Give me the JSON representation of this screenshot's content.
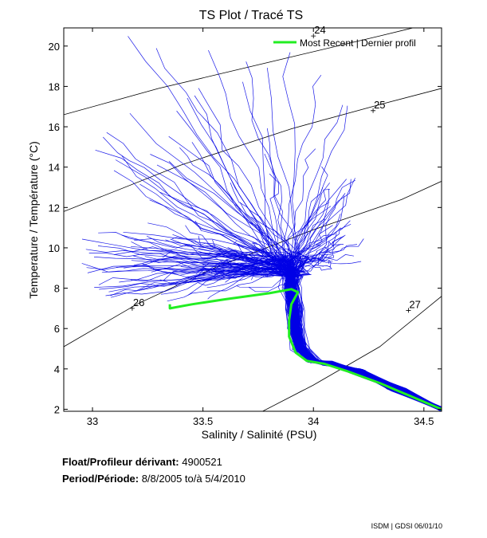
{
  "chart_data": {
    "type": "line",
    "title": "TS Plot / Tracé TS",
    "xlabel": "Salinity / Salinité (PSU)",
    "ylabel": "Temperature / Température (°C)",
    "xlim": [
      32.87,
      34.58
    ],
    "ylim": [
      1.9,
      20.9
    ],
    "x_ticks": [
      "33",
      "33.5",
      "34",
      "34.5"
    ],
    "y_ticks": [
      "2",
      "4",
      "6",
      "8",
      "10",
      "12",
      "14",
      "16",
      "18",
      "20"
    ],
    "grid": false,
    "legend": {
      "label": "Most Recent | Dernier profil",
      "position": "top-right"
    },
    "density_contours": [
      {
        "label": "24",
        "points": [
          [
            32.87,
            16.6
          ],
          [
            33.3,
            17.9
          ],
          [
            33.8,
            19.2
          ],
          [
            34.3,
            20.5
          ],
          [
            34.45,
            20.9
          ]
        ],
        "label_at": [
          34.0,
          20.5
        ]
      },
      {
        "label": "25",
        "points": [
          [
            32.87,
            11.8
          ],
          [
            33.4,
            14.1
          ],
          [
            33.9,
            15.9
          ],
          [
            34.3,
            17.1
          ],
          [
            34.58,
            17.9
          ]
        ],
        "label_at": [
          34.27,
          16.8
        ]
      },
      {
        "label": "26",
        "points": [
          [
            32.87,
            5.1
          ],
          [
            33.2,
            7.2
          ],
          [
            33.55,
            9.0
          ],
          [
            34.0,
            10.9
          ],
          [
            34.4,
            12.4
          ],
          [
            34.58,
            13.3
          ]
        ],
        "label_at": [
          33.18,
          7.0
        ]
      },
      {
        "label": "27",
        "points": [
          [
            33.77,
            1.9
          ],
          [
            34.0,
            3.2
          ],
          [
            34.3,
            5.1
          ],
          [
            34.58,
            7.6
          ]
        ],
        "label_at": [
          34.43,
          6.9
        ]
      }
    ],
    "series": [
      {
        "name": "Historical profiles",
        "color": "#0000e6",
        "profile_count": 160,
        "deep_path": [
          [
            34.58,
            2.0
          ],
          [
            34.38,
            3.0
          ],
          [
            34.2,
            3.9
          ],
          [
            34.06,
            4.3
          ],
          [
            34.0,
            4.4
          ],
          [
            33.94,
            5.0
          ],
          [
            33.92,
            6.0
          ],
          [
            33.91,
            7.0
          ],
          [
            33.9,
            8.0
          ],
          [
            33.9,
            8.6
          ]
        ],
        "surface_range": {
          "salinity": [
            32.87,
            34.3
          ],
          "temperature": [
            6.8,
            20.8
          ]
        }
      },
      {
        "name": "Most Recent | Dernier profil",
        "color": "#22ee22",
        "points": [
          [
            34.58,
            2.0
          ],
          [
            34.45,
            2.6
          ],
          [
            34.3,
            3.3
          ],
          [
            34.15,
            3.9
          ],
          [
            34.05,
            4.25
          ],
          [
            33.97,
            4.4
          ],
          [
            33.92,
            4.8
          ],
          [
            33.89,
            5.6
          ],
          [
            33.89,
            6.4
          ],
          [
            33.9,
            7.2
          ],
          [
            33.93,
            7.8
          ],
          [
            33.9,
            7.95
          ],
          [
            33.8,
            7.75
          ],
          [
            33.6,
            7.45
          ],
          [
            33.45,
            7.2
          ],
          [
            33.35,
            7.0
          ],
          [
            33.35,
            7.2
          ]
        ]
      }
    ]
  },
  "info": {
    "float_label": "Float/Profileur dérivant:",
    "float_id": "4900521",
    "period_label": "Period/Période:",
    "period_value": "8/8/2005  to/à  5/4/2010",
    "credit": "ISDM | GDSI  06/01/10"
  }
}
